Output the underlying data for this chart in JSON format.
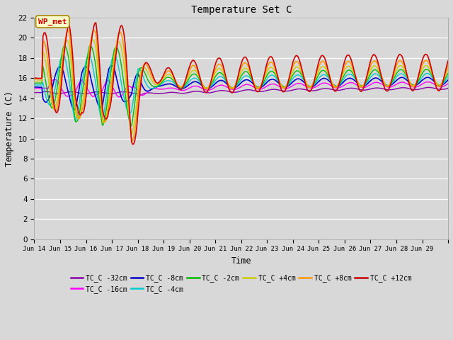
{
  "title": "Temperature Set C",
  "xlabel": "Time",
  "ylabel": "Temperature (C)",
  "ylim": [
    0,
    22
  ],
  "yticks": [
    0,
    2,
    4,
    6,
    8,
    10,
    12,
    14,
    16,
    18,
    20,
    22
  ],
  "figsize": [
    6.4,
    4.8
  ],
  "dpi": 100,
  "background_color": "#d8d8d8",
  "plot_bg_color": "#d8d8d8",
  "series": [
    {
      "label": "TC_C -32cm",
      "color": "#8800aa",
      "lw": 1.0
    },
    {
      "label": "TC_C -16cm",
      "color": "#ff00ff",
      "lw": 1.0
    },
    {
      "label": "TC_C -8cm",
      "color": "#0000cc",
      "lw": 1.2
    },
    {
      "label": "TC_C -4cm",
      "color": "#00cccc",
      "lw": 1.0
    },
    {
      "label": "TC_C -2cm",
      "color": "#00bb00",
      "lw": 1.0
    },
    {
      "label": "TC_C +4cm",
      "color": "#cccc00",
      "lw": 1.0
    },
    {
      "label": "TC_C +8cm",
      "color": "#ff9900",
      "lw": 1.2
    },
    {
      "label": "TC_C +12cm",
      "color": "#cc0000",
      "lw": 1.2
    }
  ],
  "wp_met_label": "WP_met",
  "wp_met_color": "#cc0000",
  "wp_met_bg": "#ffffcc",
  "wp_met_border": "#aa8800"
}
